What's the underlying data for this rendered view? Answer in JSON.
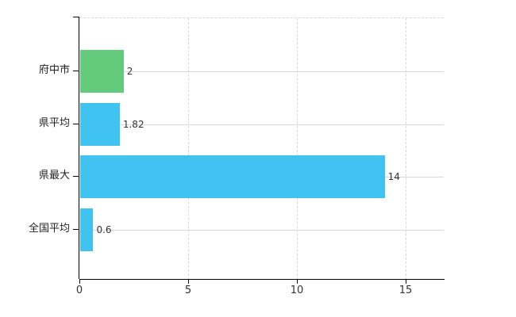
{
  "chart_data": {
    "type": "bar",
    "orientation": "horizontal",
    "title": "",
    "categories": [
      "府中市",
      "県平均",
      "県最大",
      "全国平均"
    ],
    "values": [
      2,
      1.82,
      14,
      0.6
    ],
    "value_labels": [
      "2",
      "1.82",
      "14",
      "0.6"
    ],
    "bar_colors": [
      "#65CB7C",
      "#41C3F1",
      "#41C3F1",
      "#41C3F1"
    ],
    "x_tick_values": [
      0,
      5,
      10,
      15
    ],
    "x_tick_labels": [
      "0",
      "5",
      "10",
      "15"
    ],
    "xlim": [
      0,
      16.8
    ],
    "grid": true,
    "legend": false,
    "xlabel": "",
    "ylabel": ""
  },
  "colors": {
    "background": "#ffffff",
    "bar_green": "#65CB7C",
    "bar_blue": "#41C3F1",
    "grid_line": "#d8d8d8",
    "axis_line": "#000000",
    "text": "#333333"
  }
}
